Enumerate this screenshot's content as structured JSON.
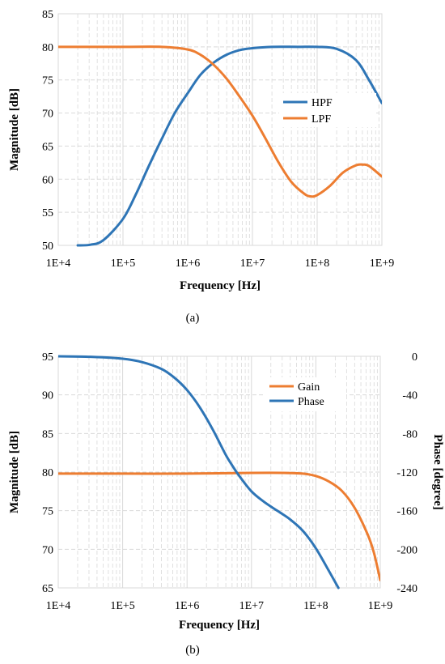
{
  "chart_data": [
    {
      "type": "line",
      "title": "",
      "caption": "(a)",
      "xlabel": "Frequency [Hz]",
      "ylabel": "Magnitude [dB]",
      "xscale": "log",
      "xlim": [
        10000,
        1000000000
      ],
      "ylim": [
        50,
        85
      ],
      "xticks": [
        10000,
        100000,
        1000000,
        10000000,
        100000000,
        1000000000
      ],
      "xtick_labels": [
        "1E+4",
        "1E+5",
        "1E+6",
        "1E+7",
        "1E+8",
        "1E+9"
      ],
      "yticks": [
        50,
        55,
        60,
        65,
        70,
        75,
        80,
        85
      ],
      "ytick_labels": [
        "50",
        "55",
        "60",
        "65",
        "70",
        "75",
        "80",
        "85"
      ],
      "grid": true,
      "legend_position": "right-middle",
      "series": [
        {
          "name": "HPF",
          "color": "#2e75b6",
          "x": [
            20000,
            31600,
            50000,
            100000,
            158000,
            251000,
            398000,
            631000,
            1000000,
            1580000,
            2510000,
            3980000,
            6310000,
            10000000,
            20000000,
            50000000,
            100000000,
            200000000,
            398000000,
            631000000,
            1000000000
          ],
          "y": [
            50.0,
            50.1,
            50.8,
            54.0,
            57.7,
            62.0,
            66.1,
            70.0,
            73.0,
            75.8,
            77.6,
            78.8,
            79.5,
            79.8,
            80.0,
            80.0,
            80.0,
            79.7,
            78.0,
            75.0,
            71.5
          ]
        },
        {
          "name": "LPF",
          "color": "#ed7d31",
          "x": [
            10000,
            100000,
            398000,
            1000000,
            1580000,
            2510000,
            3980000,
            6310000,
            10000000,
            15800000,
            25100000,
            39800000,
            63100000,
            79400000,
            100000000,
            158000000,
            251000000,
            398000000,
            501000000,
            631000000,
            1000000000
          ],
          "y": [
            80.0,
            80.0,
            80.0,
            79.6,
            78.8,
            77.3,
            75.2,
            72.5,
            69.6,
            66.2,
            62.6,
            59.6,
            57.8,
            57.4,
            57.6,
            59.0,
            61.0,
            62.1,
            62.2,
            62.0,
            60.4
          ]
        }
      ]
    },
    {
      "type": "line",
      "title": "",
      "caption": "(b)",
      "xlabel": "Frequency [Hz]",
      "ylabel": "Magnitude [dB]",
      "y2label": "Phase [degree]",
      "xscale": "log",
      "xlim": [
        10000,
        1000000000
      ],
      "ylim": [
        65,
        95
      ],
      "y2lim": [
        -240,
        0
      ],
      "xticks": [
        10000,
        100000,
        1000000,
        10000000,
        100000000,
        1000000000
      ],
      "xtick_labels": [
        "1E+4",
        "1E+5",
        "1E+6",
        "1E+7",
        "1E+8",
        "1E+9"
      ],
      "yticks": [
        65,
        70,
        75,
        80,
        85,
        90,
        95
      ],
      "ytick_labels": [
        "65",
        "70",
        "75",
        "80",
        "85",
        "90",
        "95"
      ],
      "y2ticks": [
        -240,
        -200,
        -160,
        -120,
        -80,
        -40,
        0
      ],
      "y2tick_labels": [
        "-240",
        "-200",
        "-160",
        "-120",
        "-80",
        "-40",
        "0"
      ],
      "grid": true,
      "legend_position": "top-right",
      "series": [
        {
          "name": "Gain",
          "color": "#ed7d31",
          "axis": "left",
          "x": [
            10000,
            100000,
            1000000,
            10000000,
            31600000,
            63100000,
            100000000,
            158000000,
            251000000,
            398000000,
            631000000,
            794000000,
            1000000000
          ],
          "y": [
            79.8,
            79.8,
            79.8,
            79.9,
            79.9,
            79.8,
            79.5,
            78.8,
            77.6,
            75.4,
            72.0,
            69.6,
            66.0
          ]
        },
        {
          "name": "Phase",
          "color": "#2e75b6",
          "axis": "right",
          "x": [
            10000,
            31600,
            100000,
            200000,
            398000,
            631000,
            1000000,
            1580000,
            2510000,
            3980000,
            5010000,
            6310000,
            10000000,
            15800000,
            25100000,
            39800000,
            63100000,
            100000000,
            158000000,
            224000000
          ],
          "y": [
            0,
            -0.5,
            -2.5,
            -6,
            -13,
            -22,
            -35,
            -53,
            -76,
            -102,
            -113,
            -123,
            -140,
            -151,
            -160,
            -169,
            -181,
            -199,
            -222,
            -240
          ]
        }
      ]
    }
  ]
}
